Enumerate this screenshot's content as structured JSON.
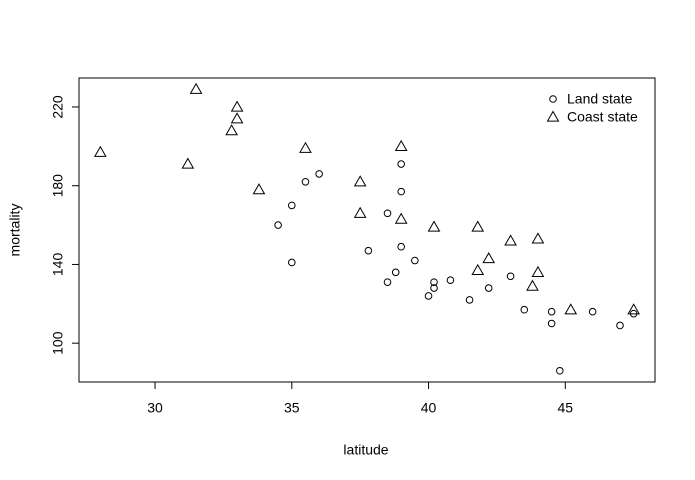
{
  "chart_data": {
    "type": "scatter",
    "x_label": "latitude",
    "y_label": "mortality",
    "xlim": [
      27.22,
      48.28
    ],
    "ylim": [
      80.28,
      234.72
    ],
    "xticks": [
      30,
      35,
      40,
      45
    ],
    "yticks": [
      100,
      140,
      180,
      220
    ],
    "legend": "top-right",
    "series": [
      {
        "name": "Land state",
        "marker": "circle",
        "color": "#000000",
        "x": [
          34.5,
          35,
          35,
          35.5,
          36,
          37.8,
          38.5,
          38.5,
          38.8,
          39,
          39,
          39,
          39.5,
          40,
          40.2,
          40.2,
          40.8,
          41.5,
          42.2,
          43,
          43.5,
          44.5,
          44.5,
          44.8,
          46,
          47,
          47.5
        ],
        "values": [
          160,
          170,
          141,
          182,
          186,
          147,
          166,
          131,
          136,
          191,
          177,
          149,
          142,
          124,
          131,
          128,
          132,
          122,
          128,
          134,
          117,
          116,
          110,
          86,
          116,
          109,
          115
        ]
      },
      {
        "name": "Coast state",
        "marker": "triangle",
        "color": "#000000",
        "x": [
          28,
          31.5,
          31.2,
          32.8,
          33,
          33,
          33.8,
          35.5,
          37.5,
          37.5,
          39,
          39,
          40.2,
          41.8,
          41.8,
          42.2,
          43,
          44,
          44,
          43.8,
          45.2,
          47.5
        ],
        "values": [
          197,
          229,
          191,
          208,
          220,
          214,
          178,
          199,
          182,
          166,
          200,
          163,
          159,
          159,
          137,
          143,
          152,
          153,
          136,
          129,
          117,
          117
        ]
      }
    ]
  }
}
